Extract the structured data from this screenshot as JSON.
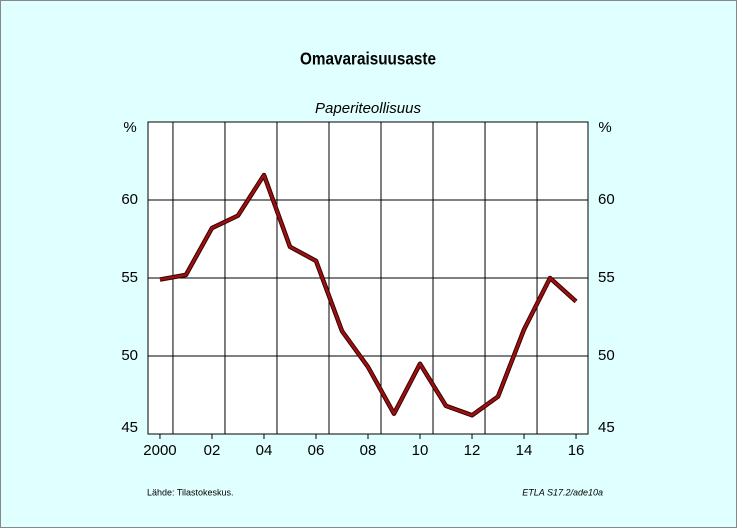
{
  "chart_data": {
    "type": "line",
    "title": "Omavaraisuusaste",
    "subtitle": "Paperiteollisuus",
    "y_unit": "%",
    "y2_unit": "%",
    "source": "Lähde:  Tilastokeskus.",
    "code": "ETLA S17.2/ade10a",
    "x": [
      2000,
      2001,
      2002,
      2003,
      2004,
      2005,
      2006,
      2007,
      2008,
      2009,
      2010,
      2011,
      2012,
      2013,
      2014,
      2015,
      2016
    ],
    "series": [
      {
        "color": "#9b1111",
        "values": [
          54.9,
          55.2,
          58.2,
          59.0,
          61.6,
          57.0,
          56.1,
          51.6,
          49.3,
          46.3,
          49.5,
          46.8,
          46.2,
          47.4,
          51.7,
          55.0,
          53.5
        ]
      }
    ],
    "xlim": [
      1999.54,
      2016.46
    ],
    "xticks": [
      {
        "value": 2000,
        "label": "2000"
      },
      {
        "value": 2002,
        "label": "02"
      },
      {
        "value": 2004,
        "label": "04"
      },
      {
        "value": 2006,
        "label": "06"
      },
      {
        "value": 2008,
        "label": "08"
      },
      {
        "value": 2010,
        "label": "10"
      },
      {
        "value": 2012,
        "label": "12"
      },
      {
        "value": 2014,
        "label": "14"
      },
      {
        "value": 2016,
        "label": "16"
      }
    ],
    "xgrid": [
      2000.5,
      2002.5,
      2004.5,
      2006.5,
      2008.5,
      2010.5,
      2012.5,
      2014.5
    ],
    "ylim": [
      45,
      65
    ],
    "yticks": [
      45,
      50,
      55,
      60
    ],
    "y2lim": [
      45,
      65
    ],
    "y2ticks": [
      45,
      50,
      55,
      60
    ],
    "grid": true
  }
}
